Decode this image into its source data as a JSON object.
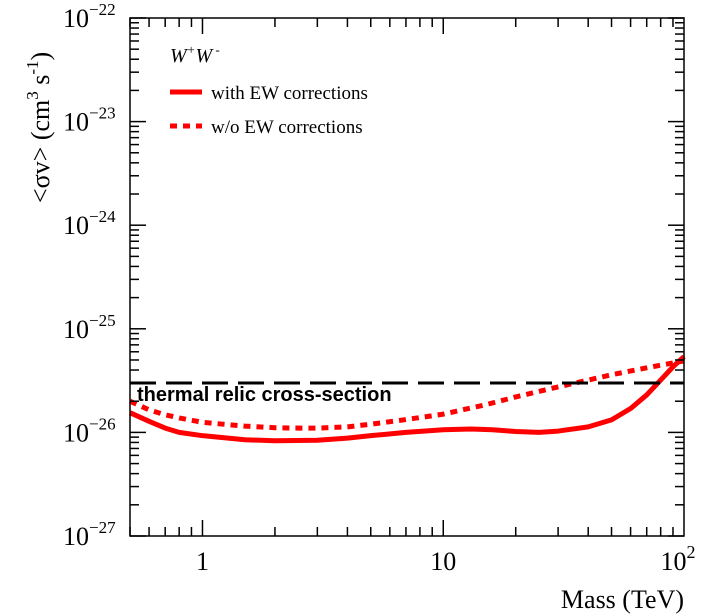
{
  "chart_data": {
    "type": "line",
    "title": "",
    "xlabel": "Mass (TeV)",
    "ylabel": "<σv> (cm³ s⁻¹)",
    "ylabel_parts": {
      "open": "<σv> (cm",
      "pow3": "3",
      "mid": " s",
      "powneg": "-1",
      "close": ")"
    },
    "xscale": "log",
    "yscale": "log",
    "xlim": [
      0.5,
      100
    ],
    "ylim": [
      1e-27,
      1e-22
    ],
    "grid": false,
    "x_ticks": [
      {
        "value": 1,
        "label": "1",
        "sup": ""
      },
      {
        "value": 10,
        "label": "10",
        "sup": ""
      },
      {
        "value": 100,
        "label": "10",
        "sup": "2"
      }
    ],
    "y_ticks": [
      {
        "value": 1e-22,
        "base": "10",
        "exp": "−22"
      },
      {
        "value": 1e-23,
        "base": "10",
        "exp": "−23"
      },
      {
        "value": 1e-24,
        "base": "10",
        "exp": "−24"
      },
      {
        "value": 1e-25,
        "base": "10",
        "exp": "−25"
      },
      {
        "value": 1e-26,
        "base": "10",
        "exp": "−26"
      },
      {
        "value": 1e-27,
        "base": "10",
        "exp": "−27"
      }
    ],
    "legend": {
      "placement": "top-left",
      "title": {
        "w1": "W",
        "sup1": "+",
        "w2": "W",
        "sup2": " -"
      },
      "entries": [
        {
          "label": "with EW corrections",
          "series": "with_ew"
        },
        {
          "label": "w/o EW corrections",
          "series": "without_ew"
        }
      ]
    },
    "series": [
      {
        "name": "with EW corrections",
        "id": "with_ew",
        "color": "#ff0000",
        "style": "solid",
        "x": [
          0.5,
          0.6,
          0.7,
          0.8,
          1.0,
          1.5,
          2.0,
          3.0,
          4.0,
          5.0,
          7.0,
          10.0,
          13.0,
          16.0,
          20.0,
          25.0,
          30.0,
          40.0,
          50.0,
          60.0,
          70.0,
          80.0,
          90.0,
          100.0
        ],
        "y": [
          1.55e-26,
          1.28e-26,
          1.1e-26,
          1e-26,
          9.3e-27,
          8.5e-27,
          8.3e-27,
          8.4e-27,
          8.8e-27,
          9.3e-27,
          1e-26,
          1.06e-26,
          1.08e-26,
          1.06e-26,
          1.02e-26,
          1e-26,
          1.03e-26,
          1.13e-26,
          1.32e-26,
          1.7e-26,
          2.3e-26,
          3.2e-26,
          4.3e-26,
          5.4e-26
        ]
      },
      {
        "name": "w/o EW corrections",
        "id": "without_ew",
        "color": "#ff0000",
        "style": "dotted",
        "x": [
          0.5,
          0.6,
          0.7,
          0.8,
          1.0,
          1.5,
          2.0,
          2.5,
          3.0,
          4.0,
          5.0,
          7.0,
          10.0,
          15.0,
          20.0,
          30.0,
          40.0,
          50.0,
          70.0,
          100.0
        ],
        "y": [
          2e-26,
          1.65e-26,
          1.48e-26,
          1.38e-26,
          1.25e-26,
          1.15e-26,
          1.11e-26,
          1.1e-26,
          1.1e-26,
          1.13e-26,
          1.2e-26,
          1.33e-26,
          1.5e-26,
          1.85e-26,
          2.2e-26,
          2.75e-26,
          3.2e-26,
          3.6e-26,
          4.2e-26,
          4.9e-26
        ]
      }
    ],
    "annotations": [
      {
        "label": "thermal relic cross-section",
        "type": "hline",
        "value": 3e-26,
        "color": "#000000",
        "style": "dashed"
      }
    ]
  }
}
